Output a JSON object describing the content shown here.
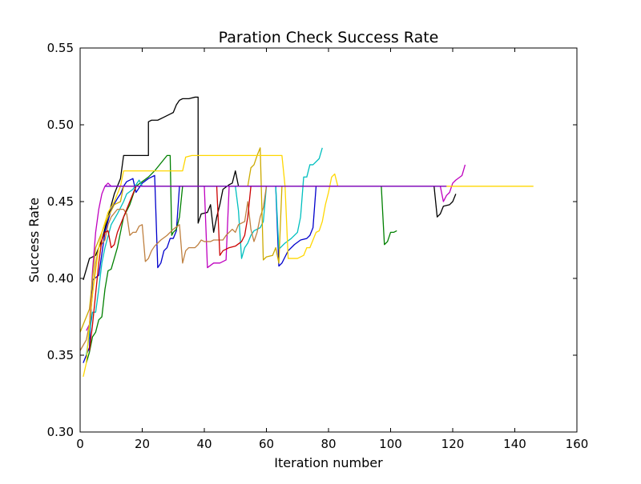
{
  "chart_data": {
    "type": "line",
    "title": "Paration Check Success Rate",
    "xlabel": "Iteration number",
    "ylabel": "Success Rate",
    "xlim": [
      0,
      160
    ],
    "ylim": [
      0.3,
      0.55
    ],
    "xticks": [
      0,
      20,
      40,
      60,
      80,
      100,
      120,
      140,
      160
    ],
    "yticks": [
      0.3,
      0.35,
      0.4,
      0.45,
      0.5,
      0.55
    ],
    "xtick_labels": [
      "0",
      "20",
      "40",
      "60",
      "80",
      "100",
      "120",
      "140",
      "160"
    ],
    "ytick_labels": [
      "0.30",
      "0.35",
      "0.40",
      "0.45",
      "0.50",
      "0.55"
    ],
    "grid": false,
    "legend": "none",
    "series": [
      {
        "color": "#000000",
        "points": [
          [
            1,
            0.399
          ],
          [
            3,
            0.413
          ],
          [
            5,
            0.415
          ],
          [
            7,
            0.425
          ],
          [
            9,
            0.44
          ],
          [
            11,
            0.455
          ],
          [
            13,
            0.465
          ],
          [
            14,
            0.48
          ],
          [
            22,
            0.48
          ],
          [
            22,
            0.502
          ],
          [
            23,
            0.503
          ],
          [
            25,
            0.503
          ],
          [
            27,
            0.505
          ],
          [
            29,
            0.507
          ],
          [
            30,
            0.508
          ],
          [
            31,
            0.513
          ],
          [
            32,
            0.516
          ],
          [
            33,
            0.517
          ],
          [
            35,
            0.517
          ],
          [
            37,
            0.518
          ],
          [
            38,
            0.518
          ],
          [
            38,
            0.436
          ],
          [
            39,
            0.442
          ],
          [
            41,
            0.443
          ],
          [
            42,
            0.448
          ],
          [
            43,
            0.43
          ],
          [
            44,
            0.44
          ],
          [
            45,
            0.448
          ],
          [
            46,
            0.458
          ],
          [
            48,
            0.461
          ],
          [
            49,
            0.462
          ],
          [
            50,
            0.47
          ],
          [
            51,
            0.46
          ],
          [
            114,
            0.46
          ],
          [
            115,
            0.44
          ],
          [
            116,
            0.442
          ],
          [
            117,
            0.447
          ],
          [
            119,
            0.448
          ],
          [
            120,
            0.45
          ],
          [
            121,
            0.455
          ]
        ]
      },
      {
        "color": "#0000cc",
        "points": [
          [
            1,
            0.345
          ],
          [
            3,
            0.355
          ],
          [
            4,
            0.399
          ],
          [
            6,
            0.402
          ],
          [
            8,
            0.43
          ],
          [
            10,
            0.445
          ],
          [
            12,
            0.452
          ],
          [
            13,
            0.455
          ],
          [
            14,
            0.46
          ],
          [
            15,
            0.463
          ],
          [
            17,
            0.465
          ],
          [
            18,
            0.456
          ],
          [
            19,
            0.459
          ],
          [
            20,
            0.462
          ],
          [
            22,
            0.465
          ],
          [
            24,
            0.467
          ],
          [
            25,
            0.407
          ],
          [
            26,
            0.41
          ],
          [
            27,
            0.418
          ],
          [
            28,
            0.42
          ],
          [
            29,
            0.426
          ],
          [
            30,
            0.426
          ],
          [
            31,
            0.431
          ],
          [
            32,
            0.46
          ],
          [
            63,
            0.46
          ],
          [
            64,
            0.408
          ],
          [
            65,
            0.41
          ],
          [
            66,
            0.414
          ],
          [
            67,
            0.418
          ],
          [
            69,
            0.422
          ],
          [
            71,
            0.425
          ],
          [
            73,
            0.426
          ],
          [
            74,
            0.428
          ],
          [
            75,
            0.433
          ],
          [
            76,
            0.46
          ],
          [
            80,
            0.46
          ]
        ]
      },
      {
        "color": "#008000",
        "points": [
          [
            2,
            0.345
          ],
          [
            3,
            0.352
          ],
          [
            4,
            0.362
          ],
          [
            5,
            0.365
          ],
          [
            6,
            0.373
          ],
          [
            7,
            0.375
          ],
          [
            8,
            0.393
          ],
          [
            9,
            0.405
          ],
          [
            10,
            0.406
          ],
          [
            12,
            0.42
          ],
          [
            14,
            0.44
          ],
          [
            16,
            0.448
          ],
          [
            18,
            0.46
          ],
          [
            22,
            0.466
          ],
          [
            24,
            0.47
          ],
          [
            26,
            0.475
          ],
          [
            28,
            0.48
          ],
          [
            29,
            0.48
          ],
          [
            29.5,
            0.428
          ],
          [
            30,
            0.43
          ],
          [
            31,
            0.432
          ],
          [
            32,
            0.44
          ],
          [
            33,
            0.46
          ],
          [
            97,
            0.46
          ],
          [
            98,
            0.422
          ],
          [
            99,
            0.424
          ],
          [
            100,
            0.43
          ],
          [
            101,
            0.43
          ],
          [
            102,
            0.431
          ]
        ]
      },
      {
        "color": "#00bfbf",
        "points": [
          [
            2,
            0.35
          ],
          [
            4,
            0.378
          ],
          [
            5,
            0.378
          ],
          [
            6,
            0.393
          ],
          [
            7,
            0.41
          ],
          [
            8,
            0.42
          ],
          [
            10,
            0.435
          ],
          [
            12,
            0.442
          ],
          [
            14,
            0.45
          ],
          [
            15,
            0.455
          ],
          [
            17,
            0.458
          ],
          [
            19,
            0.464
          ],
          [
            20,
            0.46
          ],
          [
            22,
            0.46
          ],
          [
            50,
            0.46
          ],
          [
            51,
            0.444
          ],
          [
            52,
            0.413
          ],
          [
            53,
            0.42
          ],
          [
            54,
            0.423
          ],
          [
            55,
            0.428
          ],
          [
            56,
            0.431
          ],
          [
            58,
            0.433
          ],
          [
            59,
            0.437
          ],
          [
            60,
            0.46
          ],
          [
            63,
            0.46
          ],
          [
            64,
            0.419
          ],
          [
            66,
            0.423
          ],
          [
            68,
            0.426
          ],
          [
            70,
            0.43
          ],
          [
            71,
            0.44
          ],
          [
            72,
            0.466
          ],
          [
            73,
            0.466
          ],
          [
            74,
            0.474
          ],
          [
            75,
            0.474
          ],
          [
            77,
            0.478
          ],
          [
            78,
            0.485
          ]
        ]
      },
      {
        "color": "#bf00bf",
        "points": [
          [
            2,
            0.366
          ],
          [
            3,
            0.37
          ],
          [
            4,
            0.405
          ],
          [
            5,
            0.43
          ],
          [
            6,
            0.445
          ],
          [
            7,
            0.455
          ],
          [
            8,
            0.46
          ],
          [
            9,
            0.462
          ],
          [
            10,
            0.46
          ],
          [
            40,
            0.46
          ],
          [
            41,
            0.407
          ],
          [
            43,
            0.41
          ],
          [
            45,
            0.41
          ],
          [
            47,
            0.412
          ],
          [
            48,
            0.46
          ],
          [
            116,
            0.46
          ],
          [
            117,
            0.45
          ],
          [
            118,
            0.454
          ],
          [
            119,
            0.456
          ],
          [
            120,
            0.462
          ],
          [
            121,
            0.464
          ],
          [
            123,
            0.467
          ],
          [
            124,
            0.474
          ]
        ]
      },
      {
        "color": "#bf8040",
        "points": [
          [
            0,
            0.353
          ],
          [
            2,
            0.36
          ],
          [
            3,
            0.37
          ],
          [
            4,
            0.39
          ],
          [
            5,
            0.41
          ],
          [
            6,
            0.42
          ],
          [
            8,
            0.425
          ],
          [
            9,
            0.435
          ],
          [
            10,
            0.44
          ],
          [
            12,
            0.445
          ],
          [
            14,
            0.445
          ],
          [
            15,
            0.442
          ],
          [
            16,
            0.428
          ],
          [
            17,
            0.43
          ],
          [
            18,
            0.43
          ],
          [
            19,
            0.434
          ],
          [
            20,
            0.435
          ],
          [
            21,
            0.411
          ],
          [
            22,
            0.413
          ],
          [
            23,
            0.418
          ],
          [
            24,
            0.421
          ],
          [
            26,
            0.425
          ],
          [
            28,
            0.428
          ],
          [
            30,
            0.432
          ],
          [
            32,
            0.435
          ],
          [
            33,
            0.41
          ],
          [
            34,
            0.418
          ],
          [
            35,
            0.42
          ],
          [
            37,
            0.42
          ],
          [
            38,
            0.422
          ],
          [
            39,
            0.425
          ],
          [
            40,
            0.424
          ],
          [
            42,
            0.424
          ],
          [
            43,
            0.425
          ],
          [
            46,
            0.425
          ],
          [
            47,
            0.428
          ],
          [
            49,
            0.432
          ],
          [
            50,
            0.43
          ],
          [
            51,
            0.435
          ],
          [
            53,
            0.437
          ],
          [
            54,
            0.45
          ],
          [
            55,
            0.432
          ],
          [
            56,
            0.424
          ],
          [
            57,
            0.43
          ],
          [
            58,
            0.44
          ],
          [
            59,
            0.446
          ],
          [
            60,
            0.46
          ],
          [
            70,
            0.46
          ]
        ]
      },
      {
        "color": "#cc0000",
        "points": [
          [
            3,
            0.353
          ],
          [
            4,
            0.37
          ],
          [
            5,
            0.39
          ],
          [
            6,
            0.41
          ],
          [
            7,
            0.425
          ],
          [
            8,
            0.43
          ],
          [
            9,
            0.431
          ],
          [
            10,
            0.42
          ],
          [
            11,
            0.422
          ],
          [
            12,
            0.43
          ],
          [
            14,
            0.44
          ],
          [
            16,
            0.45
          ],
          [
            18,
            0.46
          ],
          [
            44,
            0.46
          ],
          [
            45,
            0.415
          ],
          [
            46,
            0.418
          ],
          [
            48,
            0.42
          ],
          [
            50,
            0.421
          ],
          [
            52,
            0.424
          ],
          [
            53,
            0.428
          ],
          [
            54,
            0.44
          ],
          [
            55,
            0.46
          ],
          [
            60,
            0.46
          ]
        ]
      },
      {
        "color": "#ccaa00",
        "points": [
          [
            0,
            0.365
          ],
          [
            3,
            0.38
          ],
          [
            4,
            0.4
          ],
          [
            5,
            0.42
          ],
          [
            7,
            0.43
          ],
          [
            9,
            0.44
          ],
          [
            11,
            0.448
          ],
          [
            13,
            0.45
          ],
          [
            14,
            0.46
          ],
          [
            54,
            0.46
          ],
          [
            55,
            0.472
          ],
          [
            56,
            0.474
          ],
          [
            57,
            0.48
          ],
          [
            58,
            0.485
          ],
          [
            59,
            0.412
          ],
          [
            60,
            0.414
          ],
          [
            62,
            0.415
          ],
          [
            63,
            0.42
          ],
          [
            64,
            0.41
          ],
          [
            65,
            0.46
          ],
          [
            80,
            0.46
          ]
        ]
      },
      {
        "color": "#ffd700",
        "points": [
          [
            1,
            0.336
          ],
          [
            2,
            0.345
          ],
          [
            3,
            0.37
          ],
          [
            4,
            0.39
          ],
          [
            5,
            0.405
          ],
          [
            6,
            0.42
          ],
          [
            7,
            0.43
          ],
          [
            9,
            0.443
          ],
          [
            11,
            0.45
          ],
          [
            13,
            0.46
          ],
          [
            14,
            0.47
          ],
          [
            16,
            0.47
          ],
          [
            20,
            0.47
          ],
          [
            25,
            0.47
          ],
          [
            33,
            0.47
          ],
          [
            34,
            0.479
          ],
          [
            36,
            0.48
          ],
          [
            60,
            0.48
          ],
          [
            65,
            0.48
          ],
          [
            66,
            0.46
          ],
          [
            67,
            0.413
          ],
          [
            69,
            0.413
          ],
          [
            70,
            0.413
          ],
          [
            72,
            0.415
          ],
          [
            73,
            0.42
          ],
          [
            74,
            0.42
          ],
          [
            75,
            0.425
          ],
          [
            76,
            0.43
          ],
          [
            77,
            0.431
          ],
          [
            78,
            0.437
          ],
          [
            79,
            0.448
          ],
          [
            80,
            0.456
          ],
          [
            81,
            0.466
          ],
          [
            82,
            0.468
          ],
          [
            83,
            0.46
          ],
          [
            146,
            0.46
          ]
        ]
      },
      {
        "color": "#7a00c8",
        "points": [
          [
            8,
            0.46
          ],
          [
            10,
            0.46
          ],
          [
            30,
            0.46
          ],
          [
            60,
            0.46
          ],
          [
            90,
            0.46
          ],
          [
            110,
            0.46
          ],
          [
            118,
            0.46
          ]
        ]
      }
    ]
  }
}
